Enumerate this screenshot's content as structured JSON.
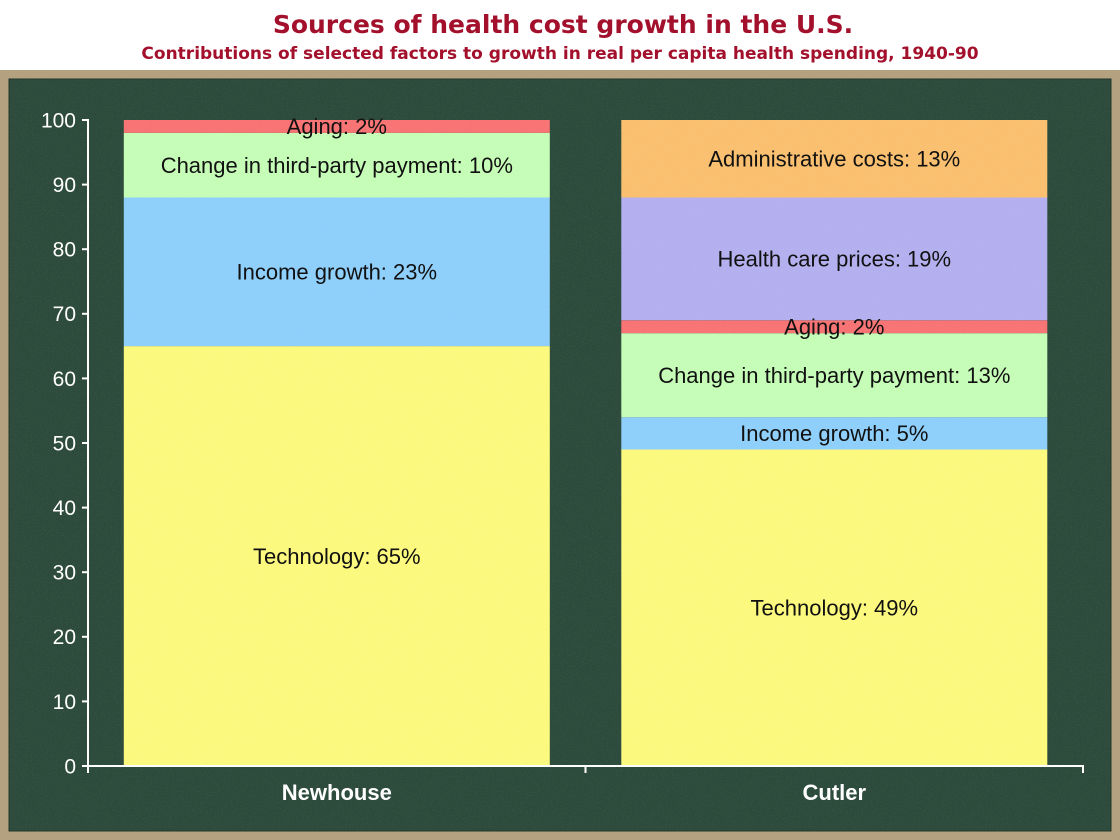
{
  "colors": {
    "title": "#a3102c",
    "frame": "#b4a17f",
    "board": "#2d4b3c",
    "axis": "#ffffff"
  },
  "chart_data": {
    "type": "bar",
    "stacked": true,
    "title": "Sources of health cost growth in the U.S.",
    "subtitle": "Contributions of selected factors to growth in real per capita health spending, 1940-90",
    "xlabel": "",
    "ylabel": "",
    "categories": [
      "Newhouse",
      "Cutler"
    ],
    "ylim": [
      0,
      100
    ],
    "yticks": [
      0,
      10,
      20,
      30,
      40,
      50,
      60,
      70,
      80,
      90,
      100
    ],
    "grid": false,
    "legend": "none",
    "value_unit": "%",
    "series": [
      {
        "name": "Technology",
        "color": "#fcf97e",
        "values": [
          65,
          49
        ]
      },
      {
        "name": "Income growth",
        "color": "#8ecffb",
        "values": [
          23,
          5
        ]
      },
      {
        "name": "Change in third-party payment",
        "color": "#c5fdb7",
        "values": [
          10,
          13
        ]
      },
      {
        "name": "Aging",
        "color": "#f87474",
        "values": [
          2,
          2
        ]
      },
      {
        "name": "Health care prices",
        "color": "#b4b0ef",
        "values": [
          null,
          19
        ]
      },
      {
        "name": "Administrative costs",
        "color": "#fac070",
        "values": [
          null,
          13
        ]
      }
    ]
  }
}
